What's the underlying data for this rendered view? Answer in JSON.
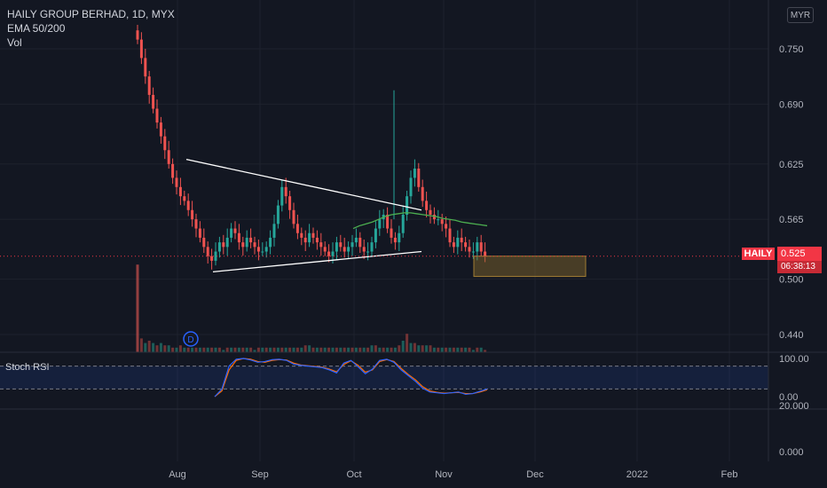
{
  "header": {
    "symbol_line": "HAILY GROUP BERHAD, 1D, MYX",
    "indicator_1": "EMA 50/200",
    "indicator_2": "Vol"
  },
  "currency_button": "MYR",
  "price_tag": {
    "symbol": "HAILY",
    "price": "0.525",
    "countdown": "06:38:13"
  },
  "stoch_rsi_label": "Stoch RSI",
  "event_marker": "D",
  "colors": {
    "up": "#26a69a",
    "down": "#ef5350",
    "ema": "#4caf50",
    "stoch_k": "#2962ff",
    "stoch_d": "#ff6d00",
    "trendline": "#ffffff",
    "target_box": "#8a6d2c"
  },
  "chart_data": {
    "type": "candlestick",
    "price_axis": {
      "ticks": [
        "0.750",
        "0.690",
        "0.625",
        "0.565",
        "0.500",
        "0.440"
      ],
      "tick_values": [
        0.75,
        0.69,
        0.625,
        0.565,
        0.5,
        0.44
      ]
    },
    "time_axis": {
      "labels": [
        "Aug",
        "Sep",
        "Oct",
        "Nov",
        "Dec",
        "2022",
        "Feb"
      ]
    },
    "stoch_axis": {
      "ticks": [
        "100.00",
        "0.00"
      ],
      "bands": [
        80,
        20
      ]
    },
    "vol_axis": {
      "ticks": [
        "20.000",
        "0.000"
      ]
    },
    "close_series_approx": [
      0.76,
      0.74,
      0.72,
      0.7,
      0.685,
      0.67,
      0.655,
      0.64,
      0.625,
      0.61,
      0.6,
      0.59,
      0.585,
      0.575,
      0.565,
      0.555,
      0.545,
      0.535,
      0.525,
      0.52,
      0.53,
      0.54,
      0.535,
      0.545,
      0.555,
      0.55,
      0.54,
      0.535,
      0.545,
      0.54,
      0.535,
      0.53,
      0.53,
      0.535,
      0.545,
      0.56,
      0.58,
      0.6,
      0.59,
      0.575,
      0.56,
      0.55,
      0.545,
      0.54,
      0.55,
      0.545,
      0.54,
      0.535,
      0.53,
      0.525,
      0.53,
      0.54,
      0.535,
      0.53,
      0.535,
      0.54,
      0.545,
      0.535,
      0.53,
      0.53,
      0.54,
      0.555,
      0.565,
      0.57,
      0.555,
      0.545,
      0.54,
      0.55,
      0.57,
      0.59,
      0.61,
      0.62,
      0.6,
      0.585,
      0.575,
      0.57,
      0.565,
      0.565,
      0.56,
      0.555,
      0.54,
      0.535,
      0.545,
      0.54,
      0.535,
      0.53,
      0.53,
      0.54,
      0.53,
      0.525
    ],
    "ema50_approx": [
      0.555,
      0.558,
      0.56,
      0.562,
      0.565,
      0.568,
      0.57,
      0.571,
      0.572,
      0.572,
      0.571,
      0.57,
      0.569,
      0.568,
      0.566,
      0.565,
      0.564,
      0.562,
      0.561,
      0.56,
      0.559,
      0.558
    ],
    "stoch_k_approx": [
      0,
      20,
      80,
      98,
      100,
      96,
      90,
      92,
      97,
      98,
      95,
      85,
      82,
      80,
      78,
      76,
      70,
      62,
      88,
      95,
      78,
      60,
      72,
      95,
      98,
      90,
      70,
      55,
      40,
      22,
      12,
      10,
      8,
      10,
      12,
      6,
      8,
      14,
      20
    ],
    "stoch_d_approx": [
      0,
      15,
      70,
      95,
      100,
      98,
      92,
      90,
      95,
      97,
      96,
      88,
      83,
      81,
      79,
      77,
      72,
      65,
      84,
      94,
      82,
      64,
      70,
      92,
      97,
      92,
      74,
      58,
      44,
      26,
      15,
      11,
      9,
      10,
      11,
      8,
      8,
      12,
      18
    ],
    "annotations": {
      "triangle_upper": [
        [
          0.0,
          0.63
        ],
        [
          0.53,
          0.575
        ]
      ],
      "triangle_lower": [
        [
          0.0,
          0.508
        ],
        [
          0.53,
          0.53
        ]
      ],
      "target_zone": {
        "top": 0.525,
        "bottom": 0.503
      }
    },
    "volume_approx": [
      38,
      6,
      4,
      5,
      4,
      3,
      4,
      3,
      3,
      2,
      2,
      3,
      2,
      2,
      2,
      2,
      2,
      2,
      2,
      2,
      2,
      2,
      1,
      2,
      2,
      2,
      2,
      2,
      2,
      2,
      1,
      2,
      2,
      2,
      2,
      2,
      2,
      2,
      2,
      2,
      2,
      2,
      2,
      3,
      3,
      2,
      2,
      2,
      2,
      2,
      2,
      2,
      2,
      2,
      2,
      2,
      2,
      2,
      2,
      2,
      3,
      3,
      2,
      2,
      2,
      2,
      2,
      3,
      5,
      8,
      4,
      4,
      3,
      3,
      3,
      3,
      2,
      2,
      2,
      2,
      2,
      2,
      2,
      2,
      2,
      2,
      1,
      2,
      2,
      1
    ]
  }
}
